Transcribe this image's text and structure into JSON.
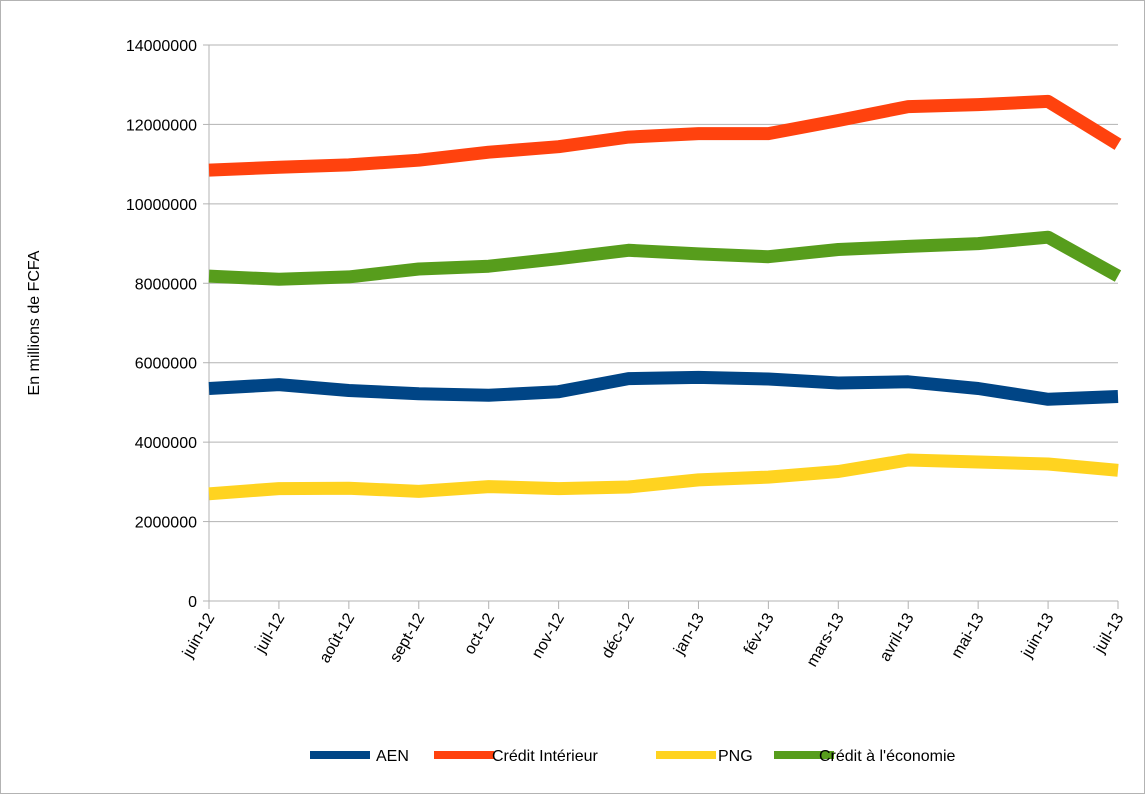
{
  "chart_data": {
    "type": "line",
    "title": "",
    "xlabel": "",
    "ylabel": "En millions de FCFA",
    "ylim": [
      0,
      14000000
    ],
    "yticks": [
      0,
      2000000,
      4000000,
      6000000,
      8000000,
      10000000,
      12000000,
      14000000
    ],
    "ytick_labels": [
      "0",
      "2000000",
      "4000000",
      "6000000",
      "8000000",
      "10000000",
      "12000000",
      "14000000"
    ],
    "grid": true,
    "legend_position": "bottom",
    "categories": [
      "juin-12",
      "juil-12",
      "août-12",
      "sept-12",
      "oct-12",
      "nov-12",
      "déc-12",
      "jan-13",
      "fév-13",
      "mars-13",
      "avril-13",
      "mai-13",
      "juin-13",
      "juil-13"
    ],
    "series": [
      {
        "name": "AEN",
        "color": "#004586",
        "values": [
          5350000,
          5450000,
          5300000,
          5220000,
          5180000,
          5270000,
          5600000,
          5630000,
          5590000,
          5490000,
          5520000,
          5350000,
          5080000,
          5150000
        ]
      },
      {
        "name": "Crédit Intérieur",
        "color": "#ff420e",
        "values": [
          10850000,
          10920000,
          10980000,
          11100000,
          11300000,
          11440000,
          11680000,
          11770000,
          11770000,
          12100000,
          12450000,
          12500000,
          12580000,
          11500000
        ]
      },
      {
        "name": "PNG",
        "color": "#ffd320",
        "values": [
          2700000,
          2830000,
          2840000,
          2760000,
          2880000,
          2830000,
          2870000,
          3050000,
          3120000,
          3260000,
          3550000,
          3500000,
          3450000,
          3290000
        ]
      },
      {
        "name": "Crédit à l'économie",
        "color": "#579d1c",
        "values": [
          8180000,
          8100000,
          8160000,
          8360000,
          8430000,
          8620000,
          8830000,
          8740000,
          8670000,
          8850000,
          8930000,
          9000000,
          9160000,
          8180000
        ]
      }
    ]
  }
}
